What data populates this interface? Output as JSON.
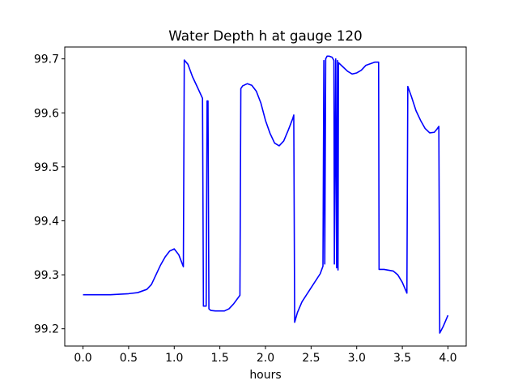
{
  "chart_data": {
    "type": "line",
    "title": "Water Depth h at gauge 120",
    "xlabel": "hours",
    "ylabel": "",
    "xlim": [
      -0.2,
      4.2
    ],
    "ylim": [
      99.168,
      99.722
    ],
    "xticks": [
      0.0,
      0.5,
      1.0,
      1.5,
      2.0,
      2.5,
      3.0,
      3.5,
      4.0
    ],
    "xtick_labels": [
      "0.0",
      "0.5",
      "1.0",
      "1.5",
      "2.0",
      "2.5",
      "3.0",
      "3.5",
      "4.0"
    ],
    "yticks": [
      99.2,
      99.3,
      99.4,
      99.5,
      99.6,
      99.7
    ],
    "ytick_labels": [
      "99.2",
      "99.3",
      "99.4",
      "99.5",
      "99.6",
      "99.7"
    ],
    "grid": false,
    "series": [
      {
        "name": "",
        "color": "#0000ff",
        "points": [
          [
            0.0,
            99.263
          ],
          [
            0.3,
            99.263
          ],
          [
            0.5,
            99.265
          ],
          [
            0.6,
            99.267
          ],
          [
            0.7,
            99.273
          ],
          [
            0.75,
            99.282
          ],
          [
            0.8,
            99.3
          ],
          [
            0.85,
            99.318
          ],
          [
            0.9,
            99.333
          ],
          [
            0.95,
            99.344
          ],
          [
            1.0,
            99.348
          ],
          [
            1.05,
            99.337
          ],
          [
            1.1,
            99.315
          ],
          [
            1.11,
            99.698
          ],
          [
            1.15,
            99.69
          ],
          [
            1.2,
            99.667
          ],
          [
            1.25,
            99.649
          ],
          [
            1.31,
            99.627
          ],
          [
            1.32,
            99.242
          ],
          [
            1.35,
            99.242
          ],
          [
            1.36,
            99.622
          ],
          [
            1.37,
            99.622
          ],
          [
            1.38,
            99.237
          ],
          [
            1.4,
            99.234
          ],
          [
            1.45,
            99.233
          ],
          [
            1.55,
            99.233
          ],
          [
            1.6,
            99.237
          ],
          [
            1.65,
            99.246
          ],
          [
            1.72,
            99.262
          ],
          [
            1.73,
            99.645
          ],
          [
            1.75,
            99.65
          ],
          [
            1.8,
            99.654
          ],
          [
            1.85,
            99.651
          ],
          [
            1.9,
            99.64
          ],
          [
            1.95,
            99.618
          ],
          [
            2.0,
            99.586
          ],
          [
            2.05,
            99.562
          ],
          [
            2.1,
            99.544
          ],
          [
            2.15,
            99.539
          ],
          [
            2.2,
            99.548
          ],
          [
            2.25,
            99.568
          ],
          [
            2.3,
            99.59
          ],
          [
            2.31,
            99.596
          ],
          [
            2.32,
            99.212
          ],
          [
            2.35,
            99.23
          ],
          [
            2.4,
            99.25
          ],
          [
            2.5,
            99.276
          ],
          [
            2.6,
            99.302
          ],
          [
            2.63,
            99.316
          ],
          [
            2.64,
            99.697
          ],
          [
            2.65,
            99.32
          ],
          [
            2.66,
            99.7
          ],
          [
            2.675,
            99.705
          ],
          [
            2.7,
            99.705
          ],
          [
            2.73,
            99.703
          ],
          [
            2.75,
            99.697
          ],
          [
            2.755,
            99.32
          ],
          [
            2.77,
            99.7
          ],
          [
            2.78,
            99.313
          ],
          [
            2.79,
            99.697
          ],
          [
            2.795,
            99.309
          ],
          [
            2.8,
            99.693
          ],
          [
            2.85,
            99.685
          ],
          [
            2.9,
            99.677
          ],
          [
            2.95,
            99.672
          ],
          [
            3.0,
            99.674
          ],
          [
            3.05,
            99.679
          ],
          [
            3.1,
            99.688
          ],
          [
            3.15,
            99.691
          ],
          [
            3.2,
            99.694
          ],
          [
            3.24,
            99.694
          ],
          [
            3.245,
            99.31
          ],
          [
            3.3,
            99.31
          ],
          [
            3.4,
            99.307
          ],
          [
            3.45,
            99.3
          ],
          [
            3.5,
            99.286
          ],
          [
            3.55,
            99.266
          ],
          [
            3.56,
            99.649
          ],
          [
            3.6,
            99.63
          ],
          [
            3.65,
            99.604
          ],
          [
            3.7,
            99.586
          ],
          [
            3.75,
            99.571
          ],
          [
            3.8,
            99.563
          ],
          [
            3.85,
            99.564
          ],
          [
            3.88,
            99.57
          ],
          [
            3.9,
            99.575
          ],
          [
            3.91,
            99.192
          ],
          [
            3.95,
            99.205
          ],
          [
            4.0,
            99.225
          ]
        ]
      }
    ]
  }
}
